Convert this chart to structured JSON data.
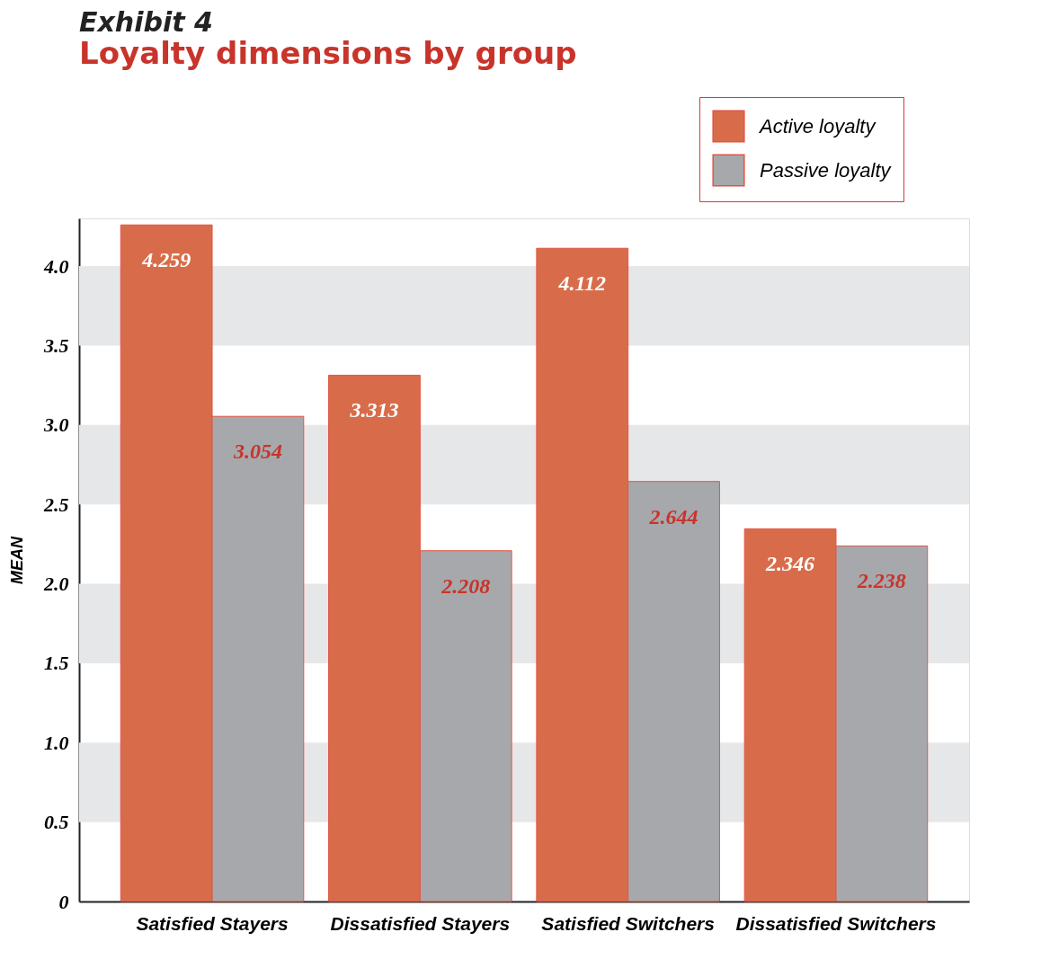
{
  "chart_data": {
    "type": "bar",
    "title": "Exhibit 4",
    "subtitle": "Loyalty dimensions by group",
    "ylabel": "MEAN",
    "categories": [
      "Satisfied Stayers",
      "Dissatisfied Stayers",
      "Satisfied Switchers",
      "Dissatisfied Switchers"
    ],
    "series": [
      {
        "name": "Active loyalty",
        "color": "#d86c4a",
        "values": [
          4.259,
          3.313,
          4.112,
          2.346
        ]
      },
      {
        "name": "Passive loyalty",
        "color": "#a7a8ab",
        "values": [
          3.054,
          2.208,
          2.644,
          2.238
        ]
      }
    ],
    "ylim": [
      0,
      4.3
    ],
    "yticks": [
      0,
      0.5,
      {
        "value": 1,
        "label": "1.0"
      },
      1.5,
      {
        "value": 2,
        "label": "2.0"
      },
      2.5,
      {
        "value": 3,
        "label": "3.0"
      },
      3.5,
      {
        "value": 4,
        "label": "4.0"
      }
    ],
    "bands": [
      {
        "axis": "y",
        "from": 0.5,
        "to": 1.0,
        "color": "#e6e7e8"
      },
      {
        "axis": "y",
        "from": 1.5,
        "to": 2.0,
        "color": "#e6e7e8"
      },
      {
        "axis": "y",
        "from": 2.5,
        "to": 3.0,
        "color": "#e6e7e8"
      },
      {
        "axis": "y",
        "from": 3.5,
        "to": 4.0,
        "color": "#e6e7e8"
      }
    ],
    "data_labels": true,
    "legend": "top right",
    "grid": false
  }
}
